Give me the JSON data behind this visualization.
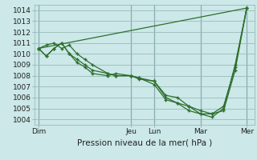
{
  "title": "",
  "xlabel": "Pression niveau de la mer( hPa )",
  "ylabel": "",
  "bg_color": "#cce8e8",
  "grid_color": "#99bbbb",
  "line_color": "#2d6e2d",
  "ylim": [
    1003.5,
    1014.5
  ],
  "yticks": [
    1004,
    1005,
    1006,
    1007,
    1008,
    1009,
    1010,
    1011,
    1012,
    1013,
    1014
  ],
  "day_labels": [
    "Dim",
    "Jeu",
    "Lun",
    "Mar",
    "Mer"
  ],
  "day_positions": [
    0,
    48,
    60,
    84,
    108
  ],
  "xlim": [
    -2,
    112
  ],
  "series1_x": [
    0,
    4,
    8,
    12,
    16,
    20,
    24,
    28,
    36,
    40,
    48,
    52,
    60,
    66,
    72,
    78,
    84,
    90,
    96,
    102,
    108
  ],
  "series1_y": [
    1010.5,
    1010.8,
    1011.0,
    1010.5,
    1010.8,
    1010.0,
    1009.5,
    1009.0,
    1008.2,
    1008.0,
    1008.0,
    1007.8,
    1007.5,
    1006.2,
    1006.0,
    1005.2,
    1004.8,
    1004.5,
    1004.8,
    1008.5,
    1014.2
  ],
  "series2_x": [
    0,
    4,
    8,
    12,
    16,
    20,
    24,
    28,
    36,
    40,
    48,
    52,
    60,
    66,
    72,
    78,
    84,
    90,
    96,
    102,
    108
  ],
  "series2_y": [
    1010.5,
    1009.8,
    1010.5,
    1011.0,
    1010.0,
    1009.5,
    1009.0,
    1008.5,
    1008.2,
    1008.0,
    1008.0,
    1007.8,
    1007.2,
    1005.8,
    1005.5,
    1004.8,
    1004.5,
    1004.2,
    1005.0,
    1009.0,
    1014.2
  ],
  "series3_x": [
    0,
    4,
    8,
    12,
    16,
    20,
    24,
    28,
    36,
    40,
    48,
    52,
    60,
    66,
    72,
    78,
    84,
    90,
    96,
    102,
    108
  ],
  "series3_y": [
    1010.5,
    1009.8,
    1010.5,
    1011.0,
    1010.0,
    1009.2,
    1008.8,
    1008.2,
    1008.0,
    1008.2,
    1008.0,
    1007.7,
    1007.5,
    1006.0,
    1005.5,
    1005.2,
    1004.5,
    1004.5,
    1005.2,
    1008.8,
    1014.2
  ],
  "series4_x": [
    0,
    108
  ],
  "series4_y": [
    1010.5,
    1014.2
  ]
}
